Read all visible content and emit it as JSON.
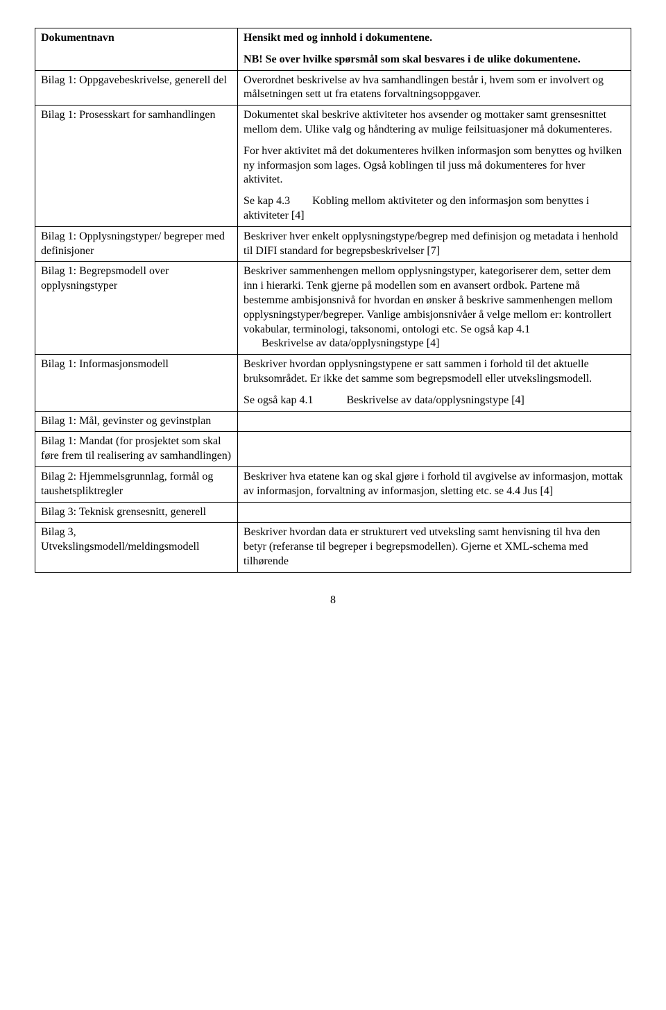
{
  "header": {
    "left": "Dokumentnavn",
    "right_line1": "Hensikt med og innhold i dokumentene.",
    "right_line2": "NB! Se over hvilke spørsmål som skal besvares i de ulike dokumentene."
  },
  "rows": [
    {
      "left": "Bilag 1: Oppgavebeskrivelse, generell del",
      "right": [
        "Overordnet beskrivelse av hva samhandlingen består i, hvem som er involvert og målsetningen sett ut fra etatens forvaltningsoppgaver."
      ]
    },
    {
      "left": "Bilag 1: Prosesskart for samhandlingen",
      "right": [
        "Dokumentet skal beskrive aktiviteter hos avsender og mottaker samt grensesnittet mellom dem. Ulike valg og håndtering av mulige feilsituasjoner må dokumenteres.",
        "For hver aktivitet må det dokumenteres hvilken informasjon som benyttes og hvilken ny informasjon som lages. Også koblingen til juss må dokumenteres for hver aktivitet.",
        "Se kap 4.3  Kobling mellom aktiviteter og den informasjon som benyttes i aktiviteter [4]"
      ]
    },
    {
      "left": "Bilag 1: Opplysningstyper/ begreper med definisjoner",
      "right": [
        "Beskriver hver enkelt opplysningstype/begrep med definisjon og metadata i henhold til DIFI standard for begrepsbeskrivelser [7]"
      ]
    },
    {
      "left": "Bilag 1: Begrepsmodell over opplysningstyper",
      "right": [
        "Beskriver sammenhengen mellom opplysningstyper, kategoriserer dem, setter dem inn i hierarki. Tenk gjerne på modellen som en avansert ordbok. Partene må bestemme ambisjonsnivå for hvordan en ønsker å beskrive sammenhengen mellom opplysningstyper/begreper. Vanlige ambisjonsnivåer å velge mellom er: kontrollert vokabular, terminologi, taksonomi, ontologi etc. Se også kap 4.1"
      ],
      "right_indent": "Beskrivelse av data/opplysningstype [4]"
    },
    {
      "left": "Bilag 1: Informasjonsmodell",
      "right": [
        "Beskriver hvordan opplysningstypene er satt sammen i forhold til det aktuelle bruksområdet. Er ikke det samme som begrepsmodell eller utvekslingsmodell.",
        "Se også kap 4.1   Beskrivelse av data/opplysningstype [4]"
      ]
    },
    {
      "left": "Bilag 1: Mål, gevinster og gevinstplan",
      "right": []
    },
    {
      "left": "Bilag 1: Mandat (for prosjektet som skal føre frem til realisering av samhandlingen)",
      "right": []
    },
    {
      "left": "Bilag 2: Hjemmelsgrunnlag, formål og taushetspliktregler",
      "right": [
        "Beskriver hva etatene kan og skal gjøre i forhold til avgivelse av informasjon, mottak av informasjon, forvaltning av informasjon, sletting etc. se 4.4 Jus [4]"
      ]
    },
    {
      "left": "Bilag 3: Teknisk grensesnitt, generell",
      "right": []
    },
    {
      "left": "Bilag 3, Utvekslingsmodell/meldingsmodell",
      "right": [
        "Beskriver hvordan data er strukturert ved utveksling samt henvisning til hva den betyr (referanse til begreper i begrepsmodellen). Gjerne et XML-schema med tilhørende"
      ]
    }
  ],
  "page_number": "8"
}
